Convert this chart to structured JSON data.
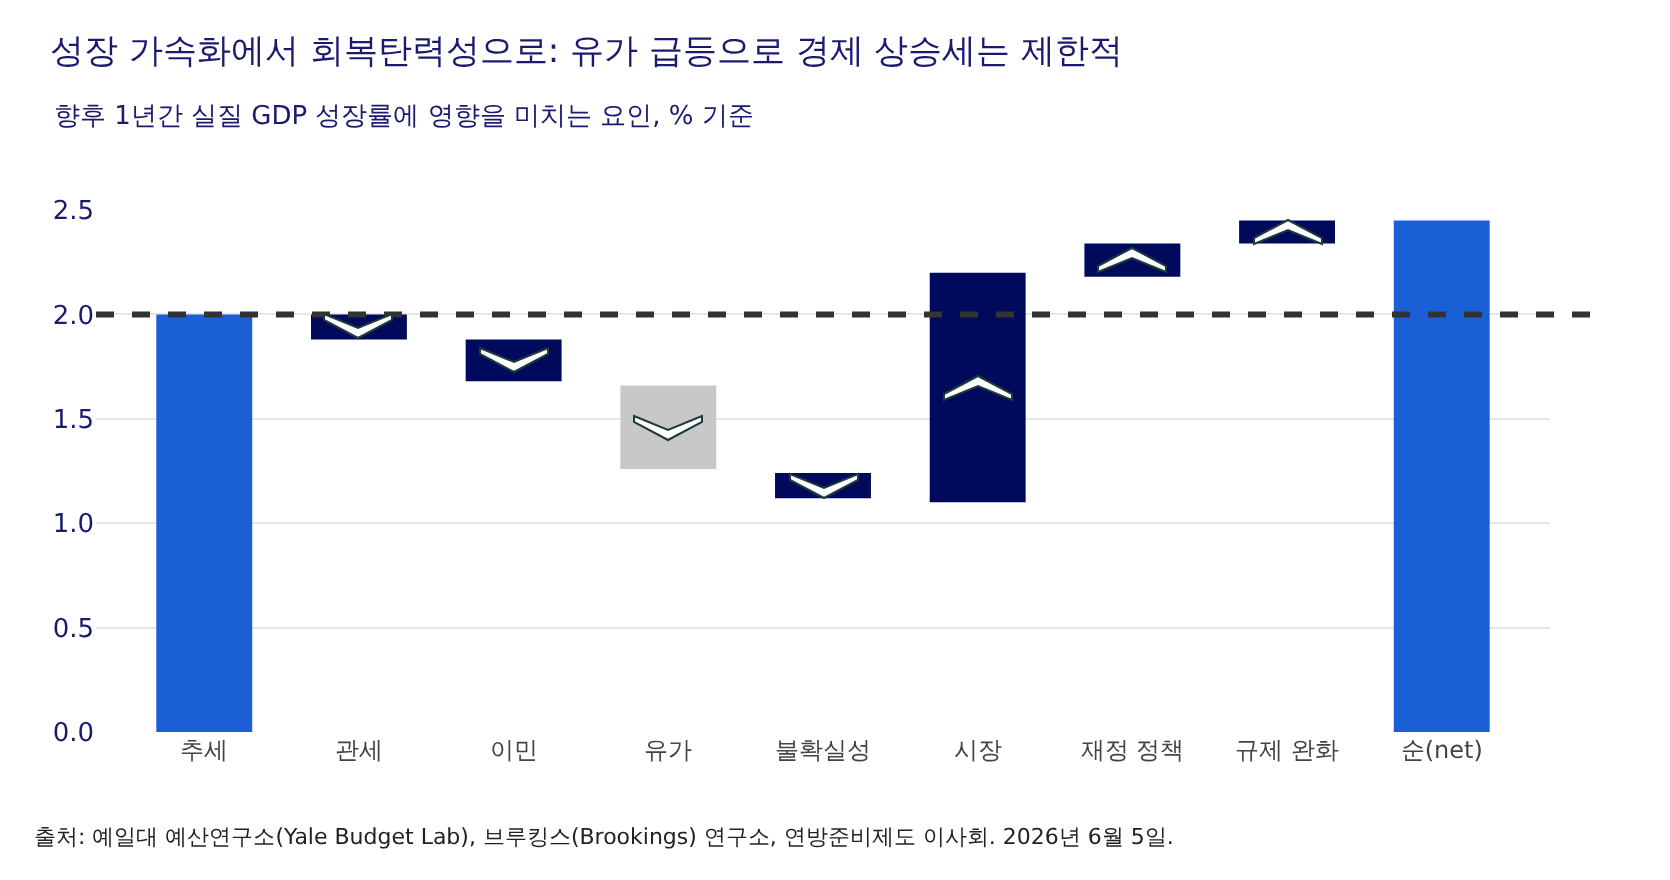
{
  "chart_data": {
    "type": "bar",
    "title": "성장 가속화에서 회복탄력성으로: 유가 급등으로 경제 상승세는 제한적",
    "subtitle": "향후 1년간 실질 GDP 성장률에 영향을 미치는 요인, % 기준",
    "categories": [
      "추세",
      "관세",
      "이민",
      "유가",
      "불확실성",
      "시장",
      "재정 정책",
      "규제 완화",
      "순(net)"
    ],
    "values": [
      2.0,
      -0.12,
      -0.2,
      -0.4,
      -0.12,
      1.1,
      0.16,
      0.11,
      2.45
    ],
    "base": [
      0,
      2.0,
      1.88,
      1.66,
      1.24,
      1.1,
      2.18,
      2.34,
      0
    ],
    "colors": [
      "#1a5fd6",
      "#000a5c",
      "#000a5c",
      "#c8c8c8",
      "#000a5c",
      "#000a5c",
      "#000a5c",
      "#000a5c",
      "#1a5fd6"
    ],
    "ylim": [
      0,
      2.5
    ],
    "yticks": [
      {
        "value": 0,
        "label": "0.0"
      },
      {
        "value": 0.5,
        "label": "0.5"
      },
      {
        "value": 1,
        "label": "1.0"
      },
      {
        "value": 1.5,
        "label": "1.5"
      },
      {
        "value": 2,
        "label": "2.0"
      },
      {
        "value": 2.5,
        "label": "2.5"
      }
    ],
    "grid": "y",
    "ref_lines": [
      {
        "axis": "y",
        "value": 2.0,
        "color": "#333333",
        "line_style": "dashed"
      }
    ],
    "annotations": [
      "출처: 예일대 예산연구소(Yale Budget Lab), 브루킹스(Brookings) 연구소, 연방준비제도 이사회. 2026년 6월 5일."
    ]
  }
}
